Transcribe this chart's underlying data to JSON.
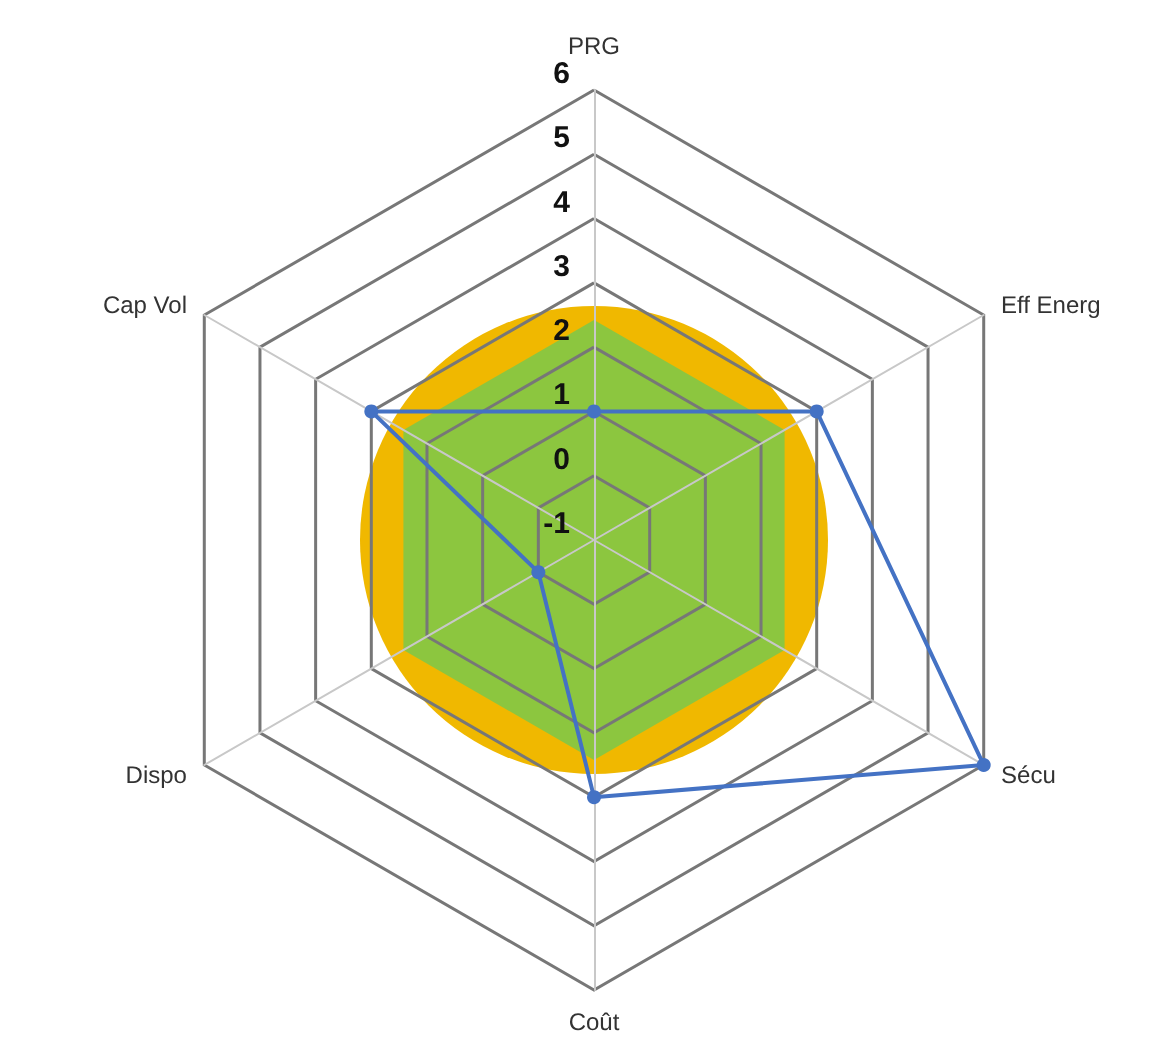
{
  "chart_data": {
    "type": "radar",
    "categories": [
      "PRG",
      "Eff Energ",
      "Sécu",
      "Coût",
      "Dispo",
      "Cap Vol"
    ],
    "series": [
      {
        "color": "#4472c4",
        "values": [
          1,
          3,
          6,
          3,
          0,
          3
        ]
      }
    ],
    "ylim": [
      -1,
      6
    ],
    "yticks": [
      -1,
      0,
      1,
      2,
      3,
      4,
      5,
      6
    ],
    "grid": true,
    "marker": "circle",
    "line_style": "solid"
  }
}
